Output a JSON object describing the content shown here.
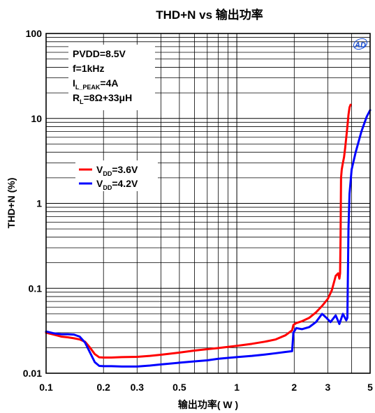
{
  "chart_data": {
    "type": "line",
    "title": "THD+N vs 输出功率",
    "xlabel": "输出功率( W )",
    "ylabel": "THD+N (%)",
    "xscale": "log",
    "yscale": "log",
    "xlim": [
      0.1,
      5
    ],
    "ylim": [
      0.01,
      100
    ],
    "xticks": [
      {
        "value": 0.1,
        "label": "0.1"
      },
      {
        "value": 0.2,
        "label": "0.2"
      },
      {
        "value": 0.3,
        "label": "0.3"
      },
      {
        "value": 0.5,
        "label": "0.5"
      },
      {
        "value": 1,
        "label": "1"
      },
      {
        "value": 2,
        "label": "2"
      },
      {
        "value": 3,
        "label": "3"
      },
      {
        "value": 5,
        "label": "5"
      }
    ],
    "yticks": [
      {
        "value": 0.01,
        "label": "0.01"
      },
      {
        "value": 0.1,
        "label": "0.1"
      },
      {
        "value": 1,
        "label": "1"
      },
      {
        "value": 10,
        "label": "10"
      },
      {
        "value": 100,
        "label": "100"
      }
    ],
    "grid": true,
    "conditions": [
      {
        "main": "PVDD=8.5V",
        "sub": "",
        "rest": ""
      },
      {
        "main": "f=1kHz",
        "sub": "",
        "rest": ""
      },
      {
        "main": "I",
        "sub": "L_PEAK",
        "rest": "=4A"
      },
      {
        "main": "R",
        "sub": "L",
        "rest": "=8Ω+33μH"
      }
    ],
    "legend_position": "middle-left",
    "logo_text": "AD",
    "series": [
      {
        "legend_main": "V",
        "legend_sub": "DD",
        "legend_rest": "=3.6V",
        "color": "#ff0000",
        "x": [
          0.1,
          0.11,
          0.12,
          0.13,
          0.14,
          0.15,
          0.16,
          0.17,
          0.18,
          0.19,
          0.2,
          0.22,
          0.25,
          0.3,
          0.35,
          0.4,
          0.5,
          0.6,
          0.7,
          0.8,
          1.0,
          1.2,
          1.4,
          1.6,
          1.8,
          1.95,
          1.98,
          2.05,
          2.2,
          2.4,
          2.6,
          2.8,
          3.0,
          3.15,
          3.3,
          3.4,
          3.45,
          3.48,
          3.5,
          3.52,
          3.55,
          3.6,
          3.65,
          3.7,
          3.75,
          3.8,
          3.85,
          3.9,
          3.95
        ],
        "y": [
          0.03,
          0.0285,
          0.027,
          0.0265,
          0.0258,
          0.025,
          0.0235,
          0.02,
          0.0168,
          0.0154,
          0.0153,
          0.0153,
          0.0155,
          0.0156,
          0.016,
          0.0165,
          0.0175,
          0.0185,
          0.0192,
          0.0198,
          0.021,
          0.0222,
          0.0235,
          0.025,
          0.028,
          0.032,
          0.037,
          0.039,
          0.041,
          0.045,
          0.052,
          0.062,
          0.075,
          0.095,
          0.14,
          0.15,
          0.13,
          0.15,
          0.4,
          2.0,
          2.5,
          3.0,
          3.5,
          4.5,
          6.0,
          8.0,
          11.0,
          13.5,
          14.5
        ]
      },
      {
        "legend_main": "V",
        "legend_sub": "DD",
        "legend_rest": "=4.2V",
        "color": "#0000ff",
        "x": [
          0.1,
          0.11,
          0.12,
          0.13,
          0.14,
          0.15,
          0.16,
          0.17,
          0.18,
          0.19,
          0.2,
          0.22,
          0.25,
          0.3,
          0.35,
          0.4,
          0.5,
          0.6,
          0.7,
          0.8,
          1.0,
          1.2,
          1.4,
          1.6,
          1.8,
          1.95,
          1.98,
          2.05,
          2.2,
          2.4,
          2.6,
          2.8,
          2.95,
          3.1,
          3.3,
          3.45,
          3.6,
          3.75,
          3.8,
          3.85,
          3.9,
          4.0,
          4.2,
          4.5,
          4.8,
          5.0
        ],
        "y": [
          0.031,
          0.0295,
          0.0288,
          0.0288,
          0.0285,
          0.027,
          0.023,
          0.0175,
          0.0135,
          0.0122,
          0.0121,
          0.0121,
          0.012,
          0.012,
          0.0123,
          0.0127,
          0.0133,
          0.0138,
          0.0142,
          0.0148,
          0.0155,
          0.016,
          0.0166,
          0.0172,
          0.0178,
          0.0182,
          0.03,
          0.034,
          0.033,
          0.035,
          0.04,
          0.05,
          0.045,
          0.04,
          0.048,
          0.038,
          0.05,
          0.042,
          0.045,
          0.5,
          1.3,
          2.5,
          4.0,
          7.0,
          10.5,
          12.5
        ]
      }
    ]
  }
}
